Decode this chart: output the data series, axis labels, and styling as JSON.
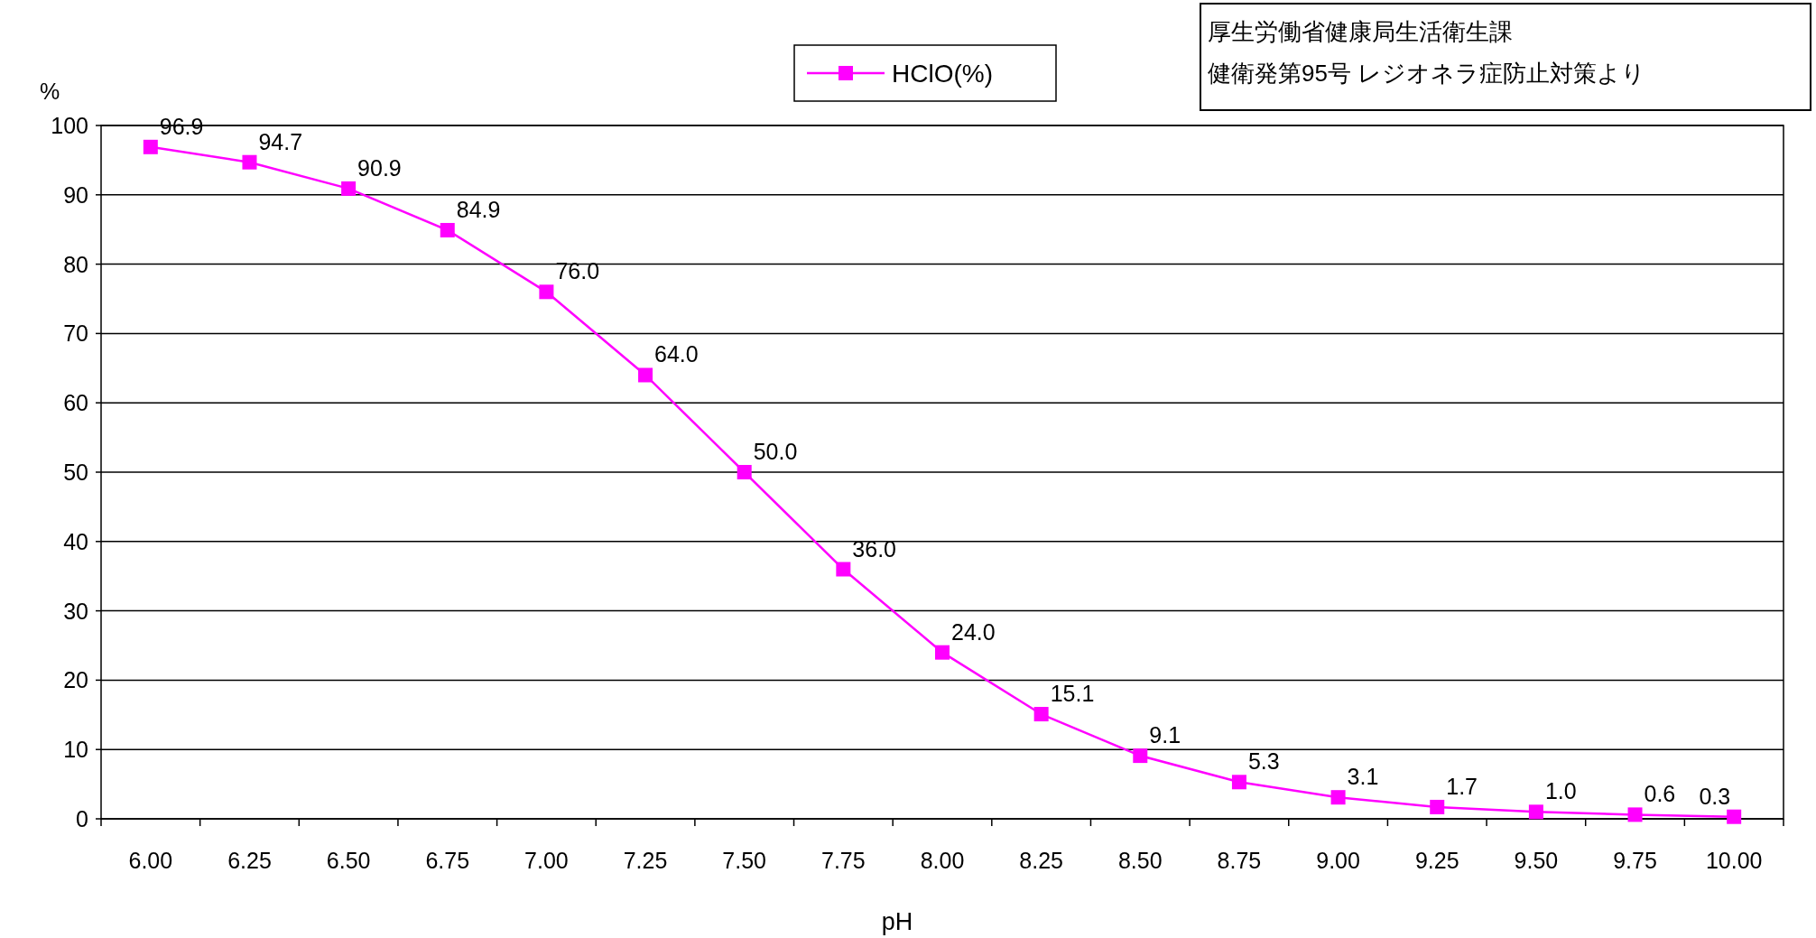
{
  "chart_data": {
    "type": "line",
    "xlabel": "pH",
    "ylabel": "%",
    "categories": [
      "6.00",
      "6.25",
      "6.50",
      "6.75",
      "7.00",
      "7.25",
      "7.50",
      "7.75",
      "8.00",
      "8.25",
      "8.50",
      "8.75",
      "9.00",
      "9.25",
      "9.50",
      "9.75",
      "10.00"
    ],
    "series": [
      {
        "name": "HClO(%)",
        "color": "#ff00ff",
        "values": [
          96.9,
          94.7,
          90.9,
          84.9,
          76.0,
          64.0,
          50.0,
          36.0,
          24.0,
          15.1,
          9.1,
          5.3,
          3.1,
          1.7,
          1.0,
          0.6,
          0.3
        ],
        "value_labels": [
          "96.9",
          "94.7",
          "90.9",
          "84.9",
          "76.0",
          "64.0",
          "50.0",
          "36.0",
          "24.0",
          "15.1",
          "9.1",
          "5.3",
          "3.1",
          "1.7",
          "1.0",
          "0.6",
          "0.3"
        ]
      }
    ],
    "ylim": [
      0,
      100
    ],
    "yticks": [
      0,
      10,
      20,
      30,
      40,
      50,
      60,
      70,
      80,
      90,
      100
    ],
    "grid": "y",
    "legend": "top",
    "marker": "square",
    "line_style": "solid",
    "annotations": [
      "厚生労働省健康局生活衛生課",
      "健衛発第95号 レジオネラ症防止対策より"
    ]
  }
}
